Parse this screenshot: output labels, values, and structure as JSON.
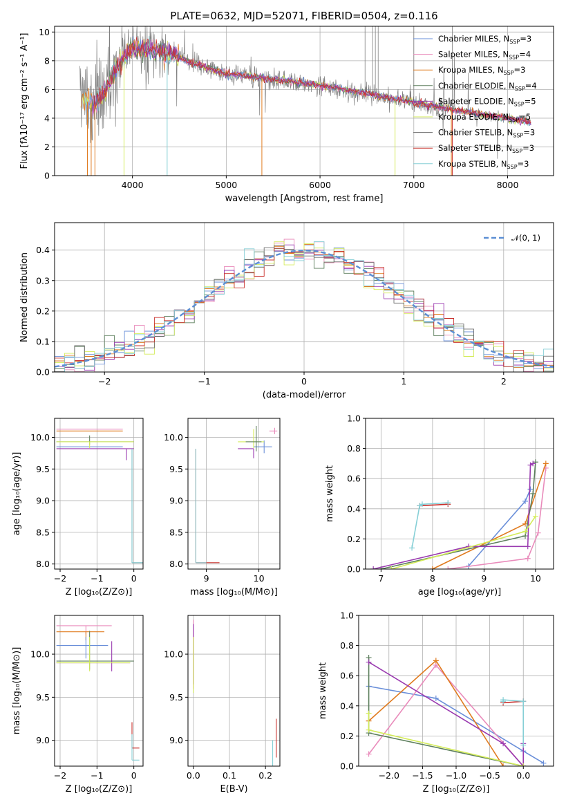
{
  "title": "PLATE=0632, MJD=52071, FIBERID=0504, z=0.116",
  "colors": [
    "#6a8fd9",
    "#e98bbb",
    "#e07b1f",
    "#5d7f5d",
    "#9a3bb0",
    "#d4ec5a",
    "#6f6f6f",
    "#c9302c",
    "#86cfd6"
  ],
  "legend_names": [
    "Chabrier MILES, N",
    "Salpeter MILES, N",
    "Kroupa MILES, N",
    "Chabrier ELODIE, N",
    "Salpeter ELODIE, N",
    "Kroupa ELODIE, N",
    "Chabrier STELIB, N",
    "Salpeter STELIB, N",
    "Kroupa STELIB, N"
  ],
  "legend_sub": "SSP",
  "legend_nssp": [
    "=3",
    "=4",
    "=3",
    "=4",
    "=5",
    "=5",
    "=3",
    "=3",
    "=3"
  ],
  "chart_data": [
    {
      "id": "spectrum",
      "type": "line",
      "xlabel": "wavelength [Angstrom, rest frame]",
      "ylabel": "Flux [fλ10⁻¹⁷ erg cm⁻² s⁻¹ A⁻¹]",
      "xlim": [
        3170,
        8490
      ],
      "ylim": [
        0,
        10.4
      ],
      "xticks": [
        4000,
        5000,
        6000,
        7000,
        8000
      ],
      "yticks": [
        0,
        2,
        4,
        6,
        8,
        10
      ],
      "continuum_x": [
        3450,
        3600,
        3700,
        3800,
        3900,
        4000,
        4200,
        4400,
        4600,
        4800,
        5000,
        5500,
        6000,
        6500,
        7000,
        7500,
        8000,
        8250
      ],
      "continuum_y": [
        5.3,
        5.0,
        5.8,
        7.2,
        8.2,
        8.9,
        8.7,
        8.6,
        7.9,
        7.5,
        7.1,
        6.7,
        6.3,
        5.7,
        5.1,
        4.5,
        4.0,
        3.7
      ],
      "grid": true
    },
    {
      "id": "residuals",
      "type": "step",
      "xlabel": "(data-model)/error",
      "ylabel": "Normed distribution",
      "xlim": [
        -2.5,
        2.5
      ],
      "ylim": [
        0,
        0.49
      ],
      "xticks": [
        -2,
        -1,
        0,
        1,
        2
      ],
      "xtick_labels": [
        "−2",
        "−1",
        "0",
        "1",
        "2"
      ],
      "yticks": [
        0.0,
        0.1,
        0.2,
        0.3,
        0.4
      ],
      "ytick_labels": [
        "0.0",
        "0.1",
        "0.2",
        "0.3",
        "0.4"
      ],
      "legend": "𝒩(0, 1)",
      "legend_position": "top-right",
      "bin_width": 0.1,
      "grid": true
    },
    {
      "id": "age-vs-Z",
      "type": "errorbar",
      "xlabel": "Z [log₁₀(Z/Z⊙)]",
      "ylabel": "age  [log₁₀(age/yr)]",
      "xlim": [
        -2.15,
        0.25
      ],
      "ylim": [
        7.92,
        10.3
      ],
      "xticks": [
        -2,
        -1,
        0
      ],
      "xtick_labels": [
        "−2",
        "−1",
        "0"
      ],
      "yticks": [
        8.0,
        8.5,
        9.0,
        9.5,
        10.0
      ],
      "ytick_labels": [
        "8.0",
        "8.5",
        "9.0",
        "9.5",
        "10.0"
      ],
      "points": [
        {
          "x": -1.3,
          "y": 9.85,
          "xerr": [
            0.8,
            1.0
          ],
          "yerr": [
            0.0,
            0.0
          ],
          "c": 0
        },
        {
          "x": -1.3,
          "y": 10.13,
          "xerr": [
            0.8,
            1.0
          ],
          "yerr": [
            0.0,
            0.0
          ],
          "c": 1
        },
        {
          "x": -1.3,
          "y": 10.1,
          "xerr": [
            0.8,
            1.0
          ],
          "yerr": [
            0.0,
            0.0
          ],
          "c": 2
        },
        {
          "x": -1.2,
          "y": 9.93,
          "xerr": [
            0.9,
            1.2
          ],
          "yerr": [
            0.05,
            0.1
          ],
          "c": 3
        },
        {
          "x": -0.2,
          "y": 9.82,
          "xerr": [
            1.9,
            0.2
          ],
          "yerr": [
            0.18,
            0.0
          ],
          "c": 4
        },
        {
          "x": -1.2,
          "y": 9.93,
          "xerr": [
            0.9,
            1.2
          ],
          "yerr": [
            0.1,
            0.0
          ],
          "c": 5
        },
        {
          "x": -0.05,
          "y": 8.02,
          "xerr": [
            0.0,
            0.3
          ],
          "yerr": [
            0.0,
            1.8
          ],
          "c": 6
        },
        {
          "x": -0.05,
          "y": 8.02,
          "xerr": [
            0.0,
            0.3
          ],
          "yerr": [
            0.0,
            1.8
          ],
          "c": 8
        }
      ],
      "grid": true
    },
    {
      "id": "age-vs-mass",
      "type": "errorbar",
      "xlabel": "mass [log₁₀(M/M⊙)]",
      "ylabel": "",
      "xlim": [
        8.65,
        10.4
      ],
      "ylim": [
        7.92,
        10.3
      ],
      "xticks": [
        9,
        10
      ],
      "xtick_labels": [
        "9",
        "10"
      ],
      "yticks": [
        8.0,
        8.5,
        9.0,
        9.5,
        10.0
      ],
      "ytick_labels": [
        "8.0",
        "8.5",
        "9.0",
        "9.5",
        "10.0"
      ],
      "points": [
        {
          "x": 10.3,
          "y": 10.1,
          "xerr": [
            0.1,
            0.05
          ],
          "yerr": [
            0.05,
            0.05
          ],
          "c": 1
        },
        {
          "x": 10.1,
          "y": 9.85,
          "xerr": [
            0.2,
            0.15
          ],
          "yerr": [
            0.1,
            0.1
          ],
          "c": 0
        },
        {
          "x": 9.9,
          "y": 9.93,
          "xerr": [
            0.3,
            0.2
          ],
          "yerr": [
            0.1,
            0.2
          ],
          "c": 5
        },
        {
          "x": 9.95,
          "y": 9.93,
          "xerr": [
            0.2,
            0.1
          ],
          "yerr": [
            0.15,
            0.25
          ],
          "c": 3
        },
        {
          "x": 9.9,
          "y": 9.82,
          "xerr": [
            0.3,
            0.0
          ],
          "yerr": [
            0.15,
            0.0
          ],
          "c": 4
        },
        {
          "x": 8.8,
          "y": 8.02,
          "xerr": [
            0.0,
            0.45
          ],
          "yerr": [
            0.0,
            1.8
          ],
          "c": 7
        },
        {
          "x": 8.8,
          "y": 8.02,
          "xerr": [
            0.0,
            0.2
          ],
          "yerr": [
            0.0,
            1.8
          ],
          "c": 8
        }
      ],
      "grid": true
    },
    {
      "id": "weight-vs-age",
      "type": "line",
      "xlabel": "age  [log₁₀(age/yr)]",
      "ylabel": "mass weight",
      "xlim": [
        6.7,
        10.35
      ],
      "ylim": [
        0,
        1.0
      ],
      "xticks": [
        7,
        8,
        9,
        10
      ],
      "xtick_labels": [
        "7",
        "8",
        "9",
        "10"
      ],
      "yticks": [
        0.0,
        0.2,
        0.4,
        0.6,
        0.8,
        1.0
      ],
      "ytick_labels": [
        "0.0",
        "0.2",
        "0.4",
        "0.6",
        "0.8",
        "1.0"
      ],
      "series": [
        {
          "c": 0,
          "x": [
            8.7,
            9.8,
            9.9
          ],
          "y": [
            0.02,
            0.45,
            0.53
          ]
        },
        {
          "c": 1,
          "x": [
            8.3,
            9.85,
            10.05,
            10.2
          ],
          "y": [
            0.0,
            0.07,
            0.24,
            0.67
          ]
        },
        {
          "c": 2,
          "x": [
            8.0,
            9.8,
            10.2
          ],
          "y": [
            0.0,
            0.3,
            0.7
          ]
        },
        {
          "c": 3,
          "x": [
            7.0,
            9.8,
            9.95,
            10.0
          ],
          "y": [
            0.0,
            0.22,
            0.5,
            0.71
          ]
        },
        {
          "c": 4,
          "x": [
            6.85,
            8.7,
            9.85,
            9.9,
            9.95
          ],
          "y": [
            0.0,
            0.15,
            0.15,
            0.69,
            0.7
          ]
        },
        {
          "c": 5,
          "x": [
            7.2,
            9.8,
            10.0
          ],
          "y": [
            0.0,
            0.25,
            0.35
          ]
        },
        {
          "c": 7,
          "x": [
            7.75,
            8.3
          ],
          "y": [
            0.42,
            0.43
          ]
        },
        {
          "c": 8,
          "x": [
            7.6,
            7.75,
            7.8,
            8.3
          ],
          "y": [
            0.14,
            0.42,
            0.43,
            0.44
          ]
        }
      ],
      "grid": true
    },
    {
      "id": "mass-vs-Z",
      "type": "errorbar",
      "xlabel": "Z [log₁₀(Z/Z⊙)]",
      "ylabel": "mass [log₁₀(M/M⊙)]",
      "xlim": [
        -2.15,
        0.25
      ],
      "ylim": [
        8.7,
        10.45
      ],
      "xticks": [
        -2,
        -1,
        0
      ],
      "xtick_labels": [
        "−2",
        "−1",
        "0"
      ],
      "yticks": [
        9.0,
        9.5,
        10.0
      ],
      "ytick_labels": [
        "9.0",
        "9.5",
        "10.0"
      ],
      "points": [
        {
          "x": -1.3,
          "y": 10.33,
          "xerr": [
            0.8,
            0.7
          ],
          "yerr": [
            0.1,
            0.0
          ],
          "c": 1
        },
        {
          "x": -1.3,
          "y": 10.26,
          "xerr": [
            0.8,
            0.5
          ],
          "yerr": [
            0.1,
            0.0
          ],
          "c": 2
        },
        {
          "x": -1.3,
          "y": 10.1,
          "xerr": [
            0.8,
            0.6
          ],
          "yerr": [
            0.15,
            0.1
          ],
          "c": 0
        },
        {
          "x": -1.2,
          "y": 9.92,
          "xerr": [
            0.9,
            1.2
          ],
          "yerr": [
            0.1,
            0.35
          ],
          "c": 3
        },
        {
          "x": -0.6,
          "y": 9.9,
          "xerr": [
            1.5,
            0.5
          ],
          "yerr": [
            0.1,
            0.25
          ],
          "c": 4
        },
        {
          "x": -1.2,
          "y": 9.9,
          "xerr": [
            0.9,
            1.1
          ],
          "yerr": [
            0.1,
            0.3
          ],
          "c": 5
        },
        {
          "x": -0.05,
          "y": 8.91,
          "xerr": [
            0.0,
            0.2
          ],
          "yerr": [
            0.0,
            0.3
          ],
          "c": 7
        },
        {
          "x": -0.05,
          "y": 8.77,
          "xerr": [
            0.0,
            0.2
          ],
          "yerr": [
            0.0,
            0.3
          ],
          "c": 8
        }
      ],
      "grid": true
    },
    {
      "id": "mass-vs-EBV",
      "type": "errorbar",
      "xlabel": "E(B-V)",
      "ylabel": "",
      "xlim": [
        -0.015,
        0.24
      ],
      "ylim": [
        8.7,
        10.45
      ],
      "xticks": [
        0.0,
        0.1,
        0.2
      ],
      "xtick_labels": [
        "0.0",
        "0.1",
        "0.2"
      ],
      "yticks": [
        9.0,
        9.5,
        10.0
      ],
      "ytick_labels": [
        "9.0",
        "9.5",
        "10.0"
      ],
      "points": [
        {
          "x": 0.0,
          "y": 10.1,
          "xerr": [
            0.0,
            0.0
          ],
          "yerr": [
            0.5,
            0.3
          ],
          "c": 1
        },
        {
          "x": 0.0,
          "y": 10.05,
          "xerr": [
            0.0,
            0.0
          ],
          "yerr": [
            0.4,
            0.3
          ],
          "c": 4
        },
        {
          "x": 0.0,
          "y": 9.9,
          "xerr": [
            0.0,
            0.0
          ],
          "yerr": [
            0.35,
            0.3
          ],
          "c": 5
        },
        {
          "x": 0.23,
          "y": 9.0,
          "xerr": [
            0.0,
            0.0
          ],
          "yerr": [
            0.2,
            0.25
          ],
          "c": 7
        },
        {
          "x": 0.22,
          "y": 8.85,
          "xerr": [
            0.0,
            0.0
          ],
          "yerr": [
            0.15,
            0.15
          ],
          "c": 8
        }
      ],
      "grid": true
    },
    {
      "id": "weight-vs-Z",
      "type": "line",
      "xlabel": "Z [log₁₀(Z/Z⊙)]",
      "ylabel": "mass weight",
      "xlim": [
        -2.45,
        0.45
      ],
      "ylim": [
        0,
        1.0
      ],
      "xticks": [
        -2.0,
        -1.5,
        -1.0,
        -0.5,
        0.0
      ],
      "xtick_labels": [
        "−2.0",
        "−1.5",
        "−1.0",
        "−0.5",
        "0.0"
      ],
      "yticks": [
        0.0,
        0.2,
        0.4,
        0.6,
        0.8,
        1.0
      ],
      "ytick_labels": [
        "0.0",
        "0.2",
        "0.4",
        "0.6",
        "0.8",
        "1.0"
      ],
      "series": [
        {
          "c": 0,
          "x": [
            -2.3,
            -1.3,
            0.0,
            0.3
          ],
          "y": [
            0.53,
            0.45,
            0.1,
            0.02
          ]
        },
        {
          "c": 1,
          "x": [
            -2.3,
            -1.3,
            0.0
          ],
          "y": [
            0.08,
            0.67,
            0.0
          ]
        },
        {
          "c": 2,
          "x": [
            -2.3,
            -1.3,
            -0.3
          ],
          "y": [
            0.3,
            0.7,
            0.0
          ]
        },
        {
          "c": 3,
          "x": [
            -2.3,
            -2.3,
            0.0
          ],
          "y": [
            0.72,
            0.22,
            0.0
          ]
        },
        {
          "c": 4,
          "x": [
            -2.3,
            -0.3,
            0.0,
            0.0
          ],
          "y": [
            0.69,
            0.15,
            0.0,
            0.15
          ]
        },
        {
          "c": 5,
          "x": [
            -2.3,
            -2.3,
            0.0
          ],
          "y": [
            0.35,
            0.24,
            0.0
          ]
        },
        {
          "c": 7,
          "x": [
            -0.3,
            0.0
          ],
          "y": [
            0.42,
            0.43
          ]
        },
        {
          "c": 8,
          "x": [
            -0.3,
            -0.3,
            0.0,
            0.0
          ],
          "y": [
            0.43,
            0.44,
            0.43,
            0.14
          ]
        }
      ],
      "grid": true
    }
  ]
}
